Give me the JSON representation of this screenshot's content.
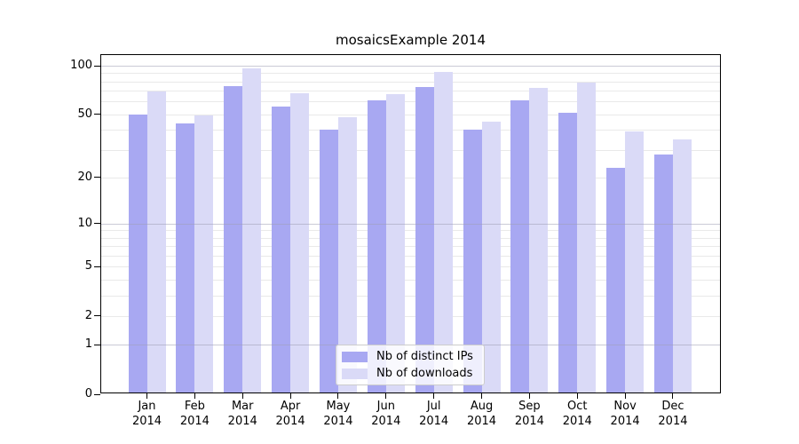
{
  "chart_data": {
    "type": "bar",
    "title": "mosaicsExample 2014",
    "categories": [
      "Jan",
      "Feb",
      "Mar",
      "Apr",
      "May",
      "Jun",
      "Jul",
      "Aug",
      "Sep",
      "Oct",
      "Nov",
      "Dec"
    ],
    "year_label": "2014",
    "series": [
      {
        "name": "Nb of distinct IPs",
        "color": "#a8a8f2",
        "values": [
          50,
          44,
          75,
          56,
          40,
          61,
          74,
          40,
          61,
          51,
          23,
          28
        ]
      },
      {
        "name": "Nb of downloads",
        "color": "#dadaf7",
        "values": [
          69,
          49,
          96,
          68,
          48,
          67,
          92,
          45,
          73,
          79,
          39,
          35
        ]
      }
    ],
    "yticks": [
      0,
      1,
      2,
      5,
      10,
      20,
      50,
      100
    ],
    "yscale": "log1p",
    "ylim": [
      0,
      118
    ],
    "xlabel": "",
    "ylabel": "",
    "grid": "horizontal, log minor lines",
    "legend_position": "lower-center-inside"
  },
  "colors": {
    "background": "#ffffff",
    "bar_dark": "#a8a8f2",
    "bar_light": "#dadaf7",
    "grid_minor": "#e9e9e9",
    "grid_major": "#9f9fb4",
    "axis": "#000000",
    "legend_border": "#cccccc"
  }
}
